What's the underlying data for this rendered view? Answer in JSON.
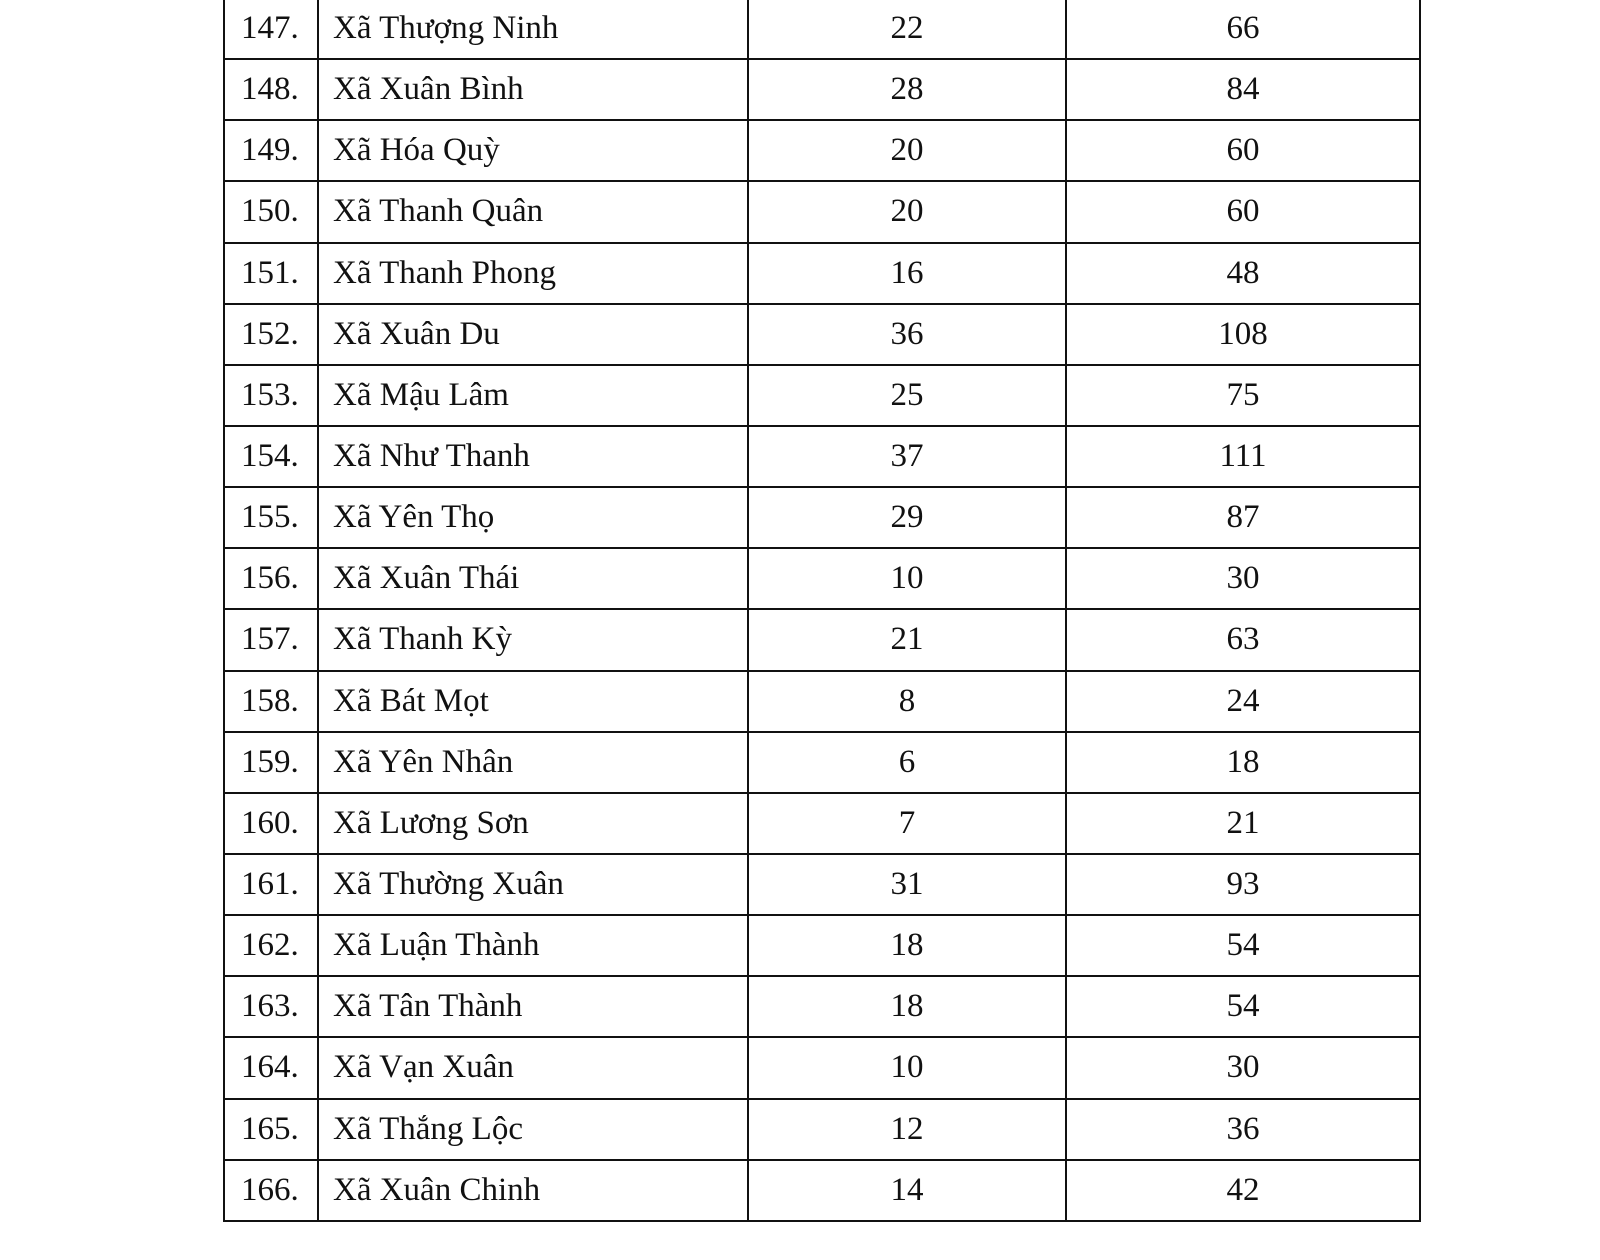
{
  "table": {
    "rows": [
      {
        "no": "147.",
        "name": "Xã Thượng Ninh",
        "a": "22",
        "b": "66"
      },
      {
        "no": "148.",
        "name": "Xã Xuân Bình",
        "a": "28",
        "b": "84"
      },
      {
        "no": "149.",
        "name": "Xã Hóa Quỳ",
        "a": "20",
        "b": "60"
      },
      {
        "no": "150.",
        "name": "Xã Thanh Quân",
        "a": "20",
        "b": "60"
      },
      {
        "no": "151.",
        "name": "Xã Thanh Phong",
        "a": "16",
        "b": "48"
      },
      {
        "no": "152.",
        "name": "Xã Xuân Du",
        "a": "36",
        "b": "108"
      },
      {
        "no": "153.",
        "name": "Xã Mậu Lâm",
        "a": "25",
        "b": "75"
      },
      {
        "no": "154.",
        "name": "Xã Như Thanh",
        "a": "37",
        "b": "111"
      },
      {
        "no": "155.",
        "name": "Xã Yên Thọ",
        "a": "29",
        "b": "87"
      },
      {
        "no": "156.",
        "name": "Xã Xuân Thái",
        "a": "10",
        "b": "30"
      },
      {
        "no": "157.",
        "name": "Xã Thanh Kỳ",
        "a": "21",
        "b": "63"
      },
      {
        "no": "158.",
        "name": "Xã Bát Mọt",
        "a": "8",
        "b": "24"
      },
      {
        "no": "159.",
        "name": "Xã Yên Nhân",
        "a": "6",
        "b": "18"
      },
      {
        "no": "160.",
        "name": "Xã Lương Sơn",
        "a": "7",
        "b": "21"
      },
      {
        "no": "161.",
        "name": "Xã Thường Xuân",
        "a": "31",
        "b": "93"
      },
      {
        "no": "162.",
        "name": "Xã Luận Thành",
        "a": "18",
        "b": "54"
      },
      {
        "no": "163.",
        "name": "Xã Tân Thành",
        "a": "18",
        "b": "54"
      },
      {
        "no": "164.",
        "name": "Xã Vạn Xuân",
        "a": "10",
        "b": "30"
      },
      {
        "no": "165.",
        "name": "Xã Thắng Lộc",
        "a": "12",
        "b": "36"
      },
      {
        "no": "166.",
        "name": "Xã Xuân Chinh",
        "a": "14",
        "b": "42"
      }
    ]
  }
}
